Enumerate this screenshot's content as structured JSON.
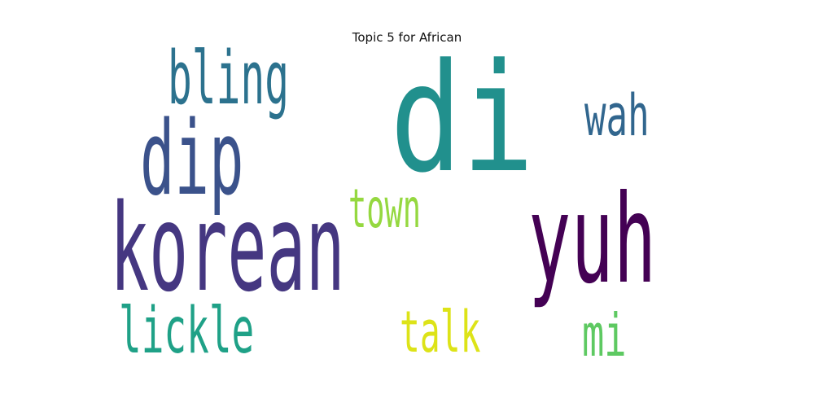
{
  "title": "Topic 5 for African",
  "words": [
    {
      "text": "di",
      "color": "#21908d"
    },
    {
      "text": "korean",
      "color": "#453781"
    },
    {
      "text": "yuh",
      "color": "#440154"
    },
    {
      "text": "dip",
      "color": "#3b528b"
    },
    {
      "text": "bling",
      "color": "#2c728e"
    },
    {
      "text": "wah",
      "color": "#31668e"
    },
    {
      "text": "town",
      "color": "#95d840"
    },
    {
      "text": "lickle",
      "color": "#1fa187"
    },
    {
      "text": "talk",
      "color": "#dde318"
    },
    {
      "text": "mi",
      "color": "#5ec962"
    }
  ]
}
